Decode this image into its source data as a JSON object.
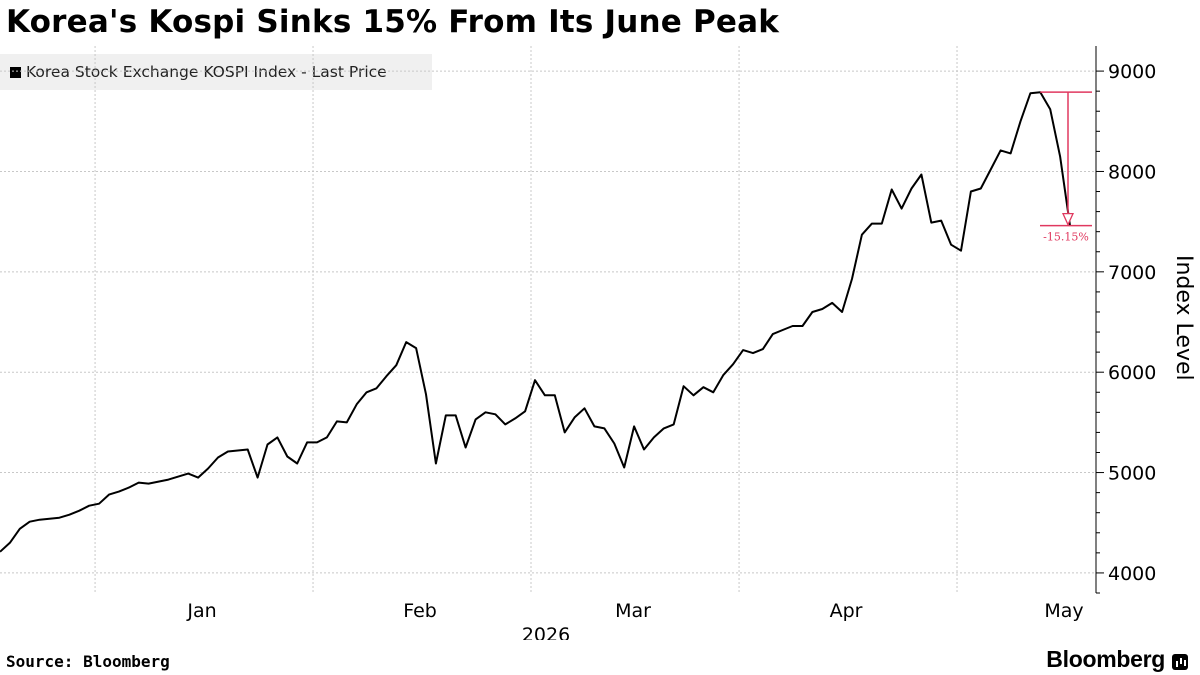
{
  "header": {
    "title": "Korea's Kospi Sinks 15% From Its June Peak"
  },
  "footer": {
    "source": "Source: Bloomberg",
    "brand": "Bloomberg"
  },
  "chart_data": {
    "type": "line",
    "title": "Korea's Kospi Sinks 15% From Its June Peak",
    "series": [
      {
        "name": "Korea Stock Exchange KOSPI Index - Last Price",
        "color": "#000000",
        "values": [
          4210,
          4300,
          4440,
          4510,
          4530,
          4540,
          4550,
          4580,
          4620,
          4670,
          4690,
          4780,
          4810,
          4850,
          4900,
          4890,
          4910,
          4930,
          4960,
          4990,
          4950,
          5040,
          5150,
          5210,
          5220,
          5230,
          4950,
          5280,
          5350,
          5160,
          5090,
          5300,
          5300,
          5350,
          5510,
          5500,
          5680,
          5800,
          5840,
          5960,
          6070,
          6300,
          6240,
          5780,
          5090,
          5570,
          5570,
          5250,
          5530,
          5600,
          5580,
          5480,
          5540,
          5610,
          5920,
          5770,
          5770,
          5400,
          5550,
          5640,
          5460,
          5440,
          5290,
          5050,
          5460,
          5230,
          5350,
          5440,
          5480,
          5860,
          5770,
          5850,
          5800,
          5970,
          6080,
          6220,
          6190,
          6230,
          6380,
          6420,
          6460,
          6460,
          6600,
          6630,
          6690,
          6600,
          6930,
          7370,
          7480,
          7480,
          7820,
          7630,
          7830,
          7970,
          7490,
          7510,
          7270,
          7210,
          7800,
          7830,
          8020,
          8210,
          8180,
          8500,
          8780,
          8790,
          8620,
          8150,
          7460
        ]
      }
    ],
    "x_tick_labels": [
      "Jan",
      "Feb",
      "Mar",
      "Apr",
      "May"
    ],
    "x_year_label": "2026",
    "y_ticks": [
      4000,
      5000,
      6000,
      7000,
      8000,
      9000
    ],
    "ylim": [
      3800,
      9250
    ],
    "ylabel": "Index Level",
    "y_axis_position": "right",
    "grid": true,
    "legend_position": "top-left",
    "annotation": {
      "label": "-15.15%",
      "peak_value": 8790,
      "trough_value": 7460,
      "color": "#e0385f"
    }
  }
}
